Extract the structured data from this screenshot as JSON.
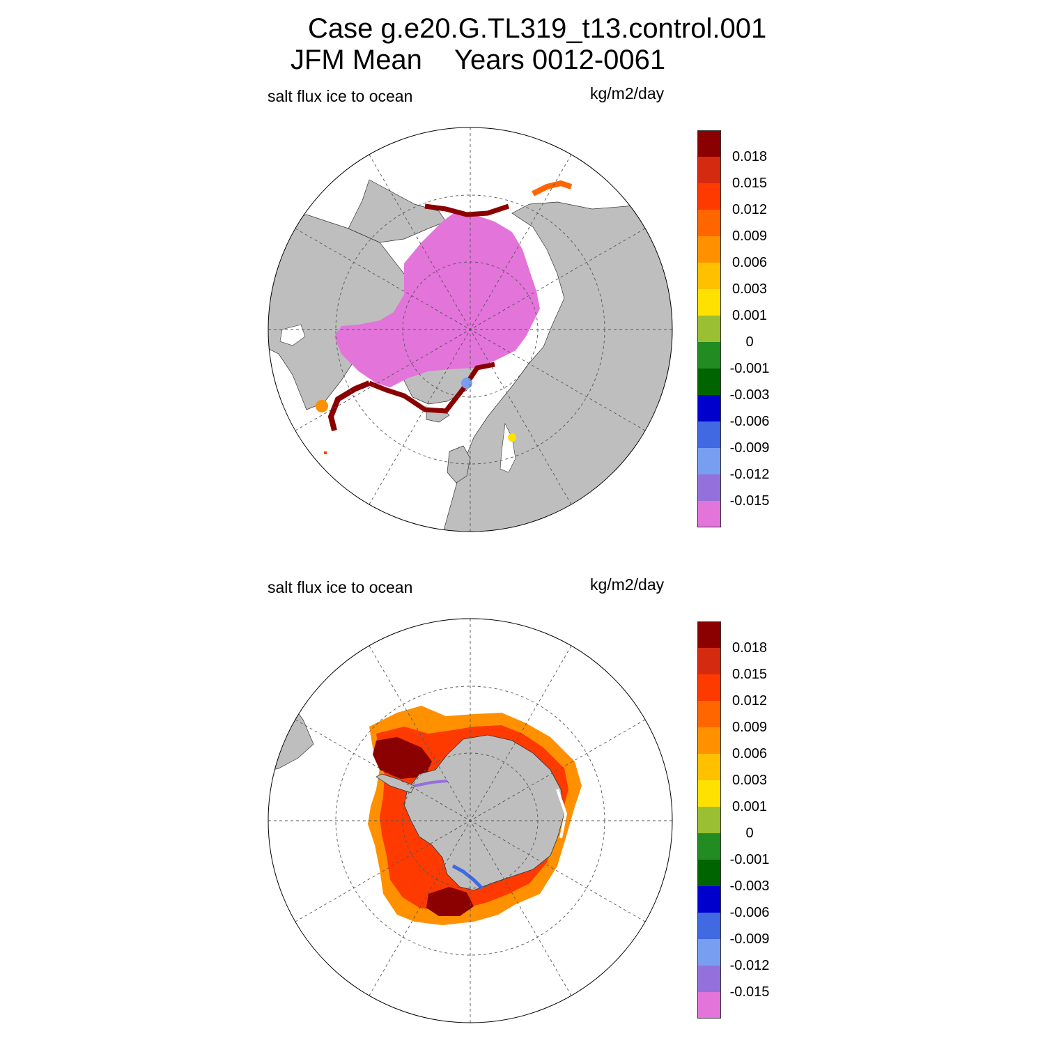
{
  "title": {
    "line1": "Case g.e20.G.TL319_t13.control.001",
    "season": "JFM Mean",
    "years": "Years 0012-0061"
  },
  "panels": [
    {
      "id": "north",
      "region": "Arctic",
      "variable": "salt flux ice to ocean",
      "units": "kg/m2/day"
    },
    {
      "id": "south",
      "region": "Antarctic",
      "variable": "salt flux ice to ocean",
      "units": "kg/m2/day"
    }
  ],
  "colorbar": {
    "labels": [
      "0.018",
      "0.015",
      "0.012",
      "0.009",
      "0.006",
      "0.003",
      "0.001",
      "0",
      "-0.001",
      "-0.003",
      "-0.006",
      "-0.009",
      "-0.012",
      "-0.015"
    ],
    "colors": [
      "#8b0000",
      "#d42a10",
      "#ff3a00",
      "#ff6600",
      "#ff9000",
      "#ffc000",
      "#ffe100",
      "#9bbf33",
      "#228b22",
      "#006400",
      "#0000cd",
      "#4169e1",
      "#779ef0",
      "#9370db",
      "#e274da"
    ]
  },
  "colors": {
    "land": "#bebebe",
    "ocean": "#ffffff",
    "grid": "#555555"
  }
}
